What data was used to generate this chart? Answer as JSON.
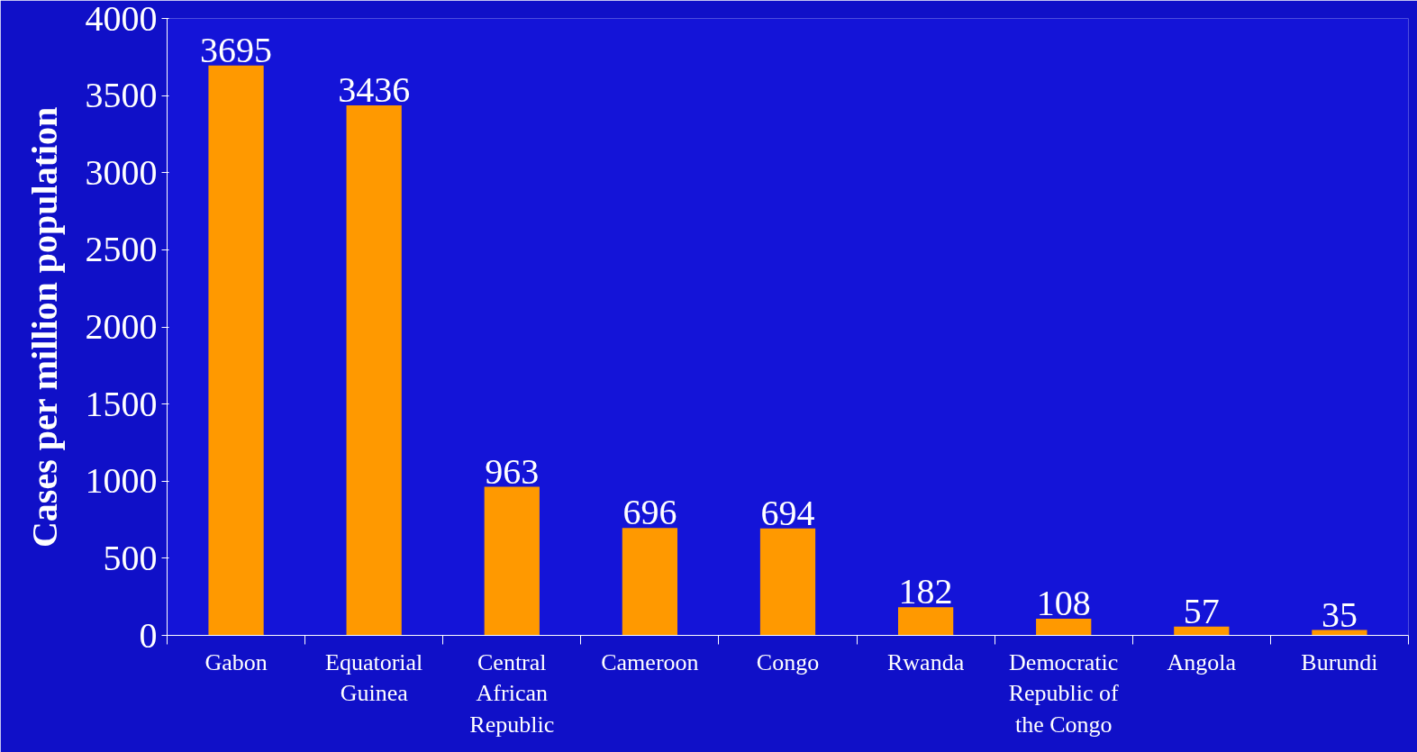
{
  "chart_data": {
    "type": "bar",
    "ylabel": "Cases per million population",
    "categories": [
      "Gabon",
      "Equatorial Guinea",
      "Central African Republic",
      "Cameroon",
      "Congo",
      "Rwanda",
      "Democratic Republic of the Congo",
      "Angola",
      "Burundi"
    ],
    "values": [
      3695,
      3436,
      963,
      696,
      694,
      182,
      108,
      57,
      35
    ],
    "color": "#ff9900",
    "ylim": [
      0,
      4000
    ],
    "yticks": [
      0,
      500,
      1000,
      1500,
      2000,
      2500,
      3000,
      3500,
      4000
    ],
    "data_labels": true
  }
}
